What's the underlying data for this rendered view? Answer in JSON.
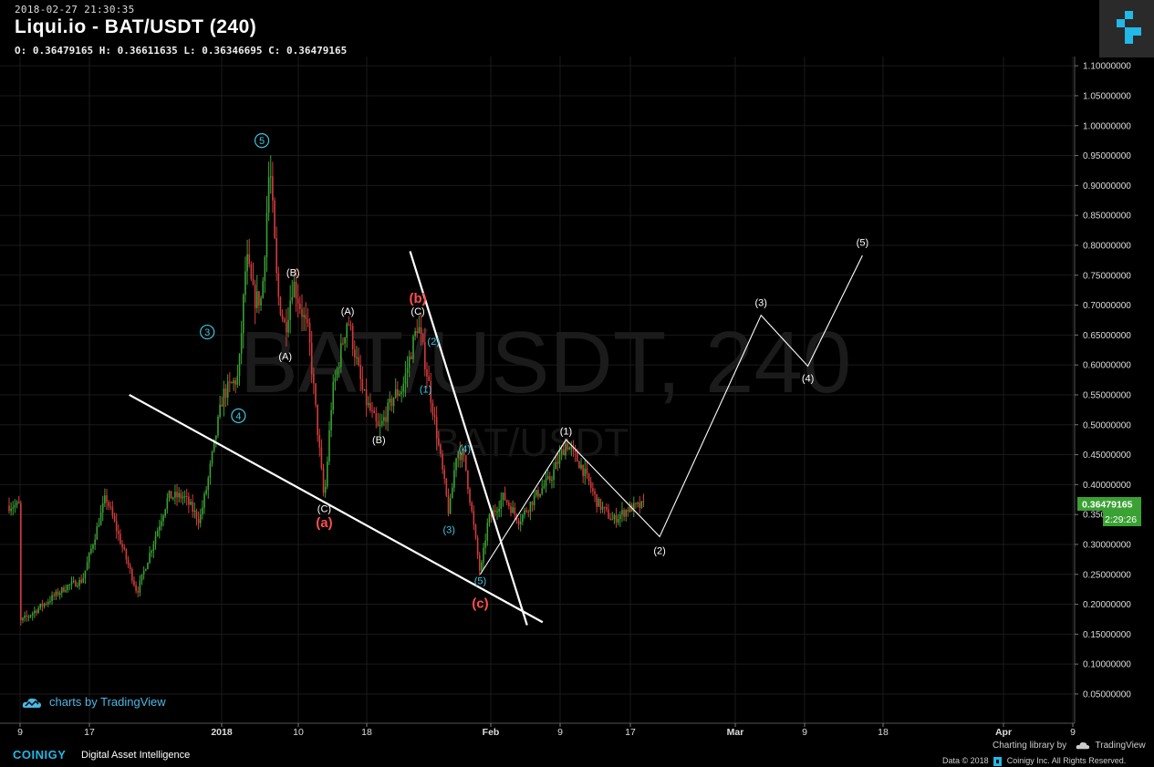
{
  "header": {
    "timestamp": "2018-02-27 21:30:35",
    "title": "Liqui.io - BAT/USDT (240)",
    "ohlc": "O: 0.36479165 H: 0.36611635 L: 0.36346695 C: 0.36479165"
  },
  "watermark": {
    "big": "BAT/USDT, 240",
    "small": "BAT/USDT"
  },
  "price_tag": {
    "price": "0.36479165",
    "countdown": "2:29:26"
  },
  "footer": {
    "tv_badge": "charts by TradingView",
    "brand": "COINIGY",
    "tagline": "Digital Asset Intelligence",
    "charting_library": "Charting library by",
    "tv_name": "TradingView",
    "copyright": "Data © 2018",
    "copyright_tail": "Coinigy Inc. All Rights Reserved."
  },
  "colors": {
    "background": "#000000",
    "up_candle": "#3aa133",
    "down_candle": "#d23b3b",
    "wave_cyan": "#3fc6de",
    "wave_red": "#ff4f4f",
    "price_tag": "#3aa133",
    "grid": "#1a1a1a"
  },
  "chart_data": {
    "type": "candlestick",
    "symbol": "BAT/USDT",
    "interval": "240",
    "ylim": [
      0.0,
      1.1
    ],
    "yticks": [
      "1.10000000",
      "1.05000000",
      "1.00000000",
      "0.95000000",
      "0.90000000",
      "0.85000000",
      "0.80000000",
      "0.75000000",
      "0.70000000",
      "0.65000000",
      "0.60000000",
      "0.55000000",
      "0.50000000",
      "0.45000000",
      "0.40000000",
      "0.35000000",
      "0.30000000",
      "0.25000000",
      "0.20000000",
      "0.15000000",
      "0.10000000",
      "0.05000000"
    ],
    "xticks": [
      "9",
      "17",
      "2018",
      "10",
      "18",
      "Feb",
      "9",
      "17",
      "Mar",
      "9",
      "18",
      "Apr",
      "9"
    ],
    "price_path": [
      [
        "2017-12-09",
        0.17
      ],
      [
        "2017-12-12",
        0.2
      ],
      [
        "2017-12-15",
        0.23
      ],
      [
        "2017-12-17",
        0.24
      ],
      [
        "2017-12-20",
        0.38
      ],
      [
        "2017-12-22",
        0.3
      ],
      [
        "2017-12-24",
        0.22
      ],
      [
        "2017-12-26",
        0.3
      ],
      [
        "2017-12-28",
        0.38
      ],
      [
        "2017-12-30",
        0.38
      ],
      [
        "2018-01-01",
        0.34
      ],
      [
        "2018-01-02",
        0.4
      ],
      [
        "2018-01-04",
        0.55
      ],
      [
        "2018-01-06",
        0.58
      ],
      [
        "2018-01-07",
        0.78
      ],
      [
        "2018-01-08",
        0.71
      ],
      [
        "2018-01-09",
        0.71
      ],
      [
        "2018-01-10",
        0.94
      ],
      [
        "2018-01-11",
        0.72
      ],
      [
        "2018-01-12",
        0.66
      ],
      [
        "2018-01-13",
        0.74
      ],
      [
        "2018-01-15",
        0.65
      ],
      [
        "2018-01-17",
        0.37
      ],
      [
        "2018-01-18",
        0.55
      ],
      [
        "2018-01-20",
        0.68
      ],
      [
        "2018-01-22",
        0.55
      ],
      [
        "2018-01-24",
        0.49
      ],
      [
        "2018-01-26",
        0.55
      ],
      [
        "2018-01-27",
        0.56
      ],
      [
        "2018-01-29",
        0.67
      ],
      [
        "2018-01-30",
        0.6
      ],
      [
        "2018-01-31",
        0.52
      ],
      [
        "2018-02-02",
        0.35
      ],
      [
        "2018-02-03",
        0.46
      ],
      [
        "2018-02-04",
        0.44
      ],
      [
        "2018-02-06",
        0.25
      ],
      [
        "2018-02-07",
        0.34
      ],
      [
        "2018-02-09",
        0.38
      ],
      [
        "2018-02-11",
        0.34
      ],
      [
        "2018-02-13",
        0.38
      ],
      [
        "2018-02-15",
        0.41
      ],
      [
        "2018-02-17",
        0.47
      ],
      [
        "2018-02-19",
        0.43
      ],
      [
        "2018-02-21",
        0.37
      ],
      [
        "2018-02-23",
        0.34
      ],
      [
        "2018-02-25",
        0.36
      ],
      [
        "2018-02-27",
        0.365
      ]
    ],
    "wave_labels": [
      {
        "text": "5",
        "date": "2018-01-09",
        "price": 0.975,
        "style": "cyan-circle"
      },
      {
        "text": "3",
        "date": "2018-01-02",
        "price": 0.655,
        "style": "cyan-circle"
      },
      {
        "text": "4",
        "date": "2018-01-06",
        "price": 0.515,
        "style": "cyan-circle"
      },
      {
        "text": "(B)",
        "date": "2018-01-13",
        "price": 0.755,
        "style": "white"
      },
      {
        "text": "(A)",
        "date": "2018-01-12",
        "price": 0.615,
        "style": "white"
      },
      {
        "text": "(A)",
        "date": "2018-01-20",
        "price": 0.69,
        "style": "white"
      },
      {
        "text": "(B)",
        "date": "2018-01-24",
        "price": 0.475,
        "style": "white"
      },
      {
        "text": "(C)",
        "date": "2018-01-17",
        "price": 0.36,
        "style": "white"
      },
      {
        "text": "(a)",
        "date": "2018-01-17",
        "price": 0.335,
        "style": "red"
      },
      {
        "text": "(b)",
        "date": "2018-01-29",
        "price": 0.71,
        "style": "red"
      },
      {
        "text": "(C)",
        "date": "2018-01-29",
        "price": 0.69,
        "style": "white"
      },
      {
        "text": "(2)",
        "date": "2018-01-31",
        "price": 0.64,
        "style": "cyan"
      },
      {
        "text": "(1)",
        "date": "2018-01-30",
        "price": 0.56,
        "style": "cyan"
      },
      {
        "text": "(4)",
        "date": "2018-02-04",
        "price": 0.46,
        "style": "cyan"
      },
      {
        "text": "(3)",
        "date": "2018-02-02",
        "price": 0.325,
        "style": "cyan"
      },
      {
        "text": "(5)",
        "date": "2018-02-06",
        "price": 0.24,
        "style": "cyan"
      },
      {
        "text": "(c)",
        "date": "2018-02-06",
        "price": 0.2,
        "style": "red"
      },
      {
        "text": "(1)",
        "date": "2018-02-17",
        "price": 0.49,
        "style": "white"
      },
      {
        "text": "(2)",
        "date": "2018-03-01",
        "price": 0.29,
        "style": "white"
      },
      {
        "text": "(3)",
        "date": "2018-03-14",
        "price": 0.705,
        "style": "white"
      },
      {
        "text": "(4)",
        "date": "2018-03-20",
        "price": 0.578,
        "style": "white"
      },
      {
        "text": "(5)",
        "date": "2018-03-27",
        "price": 0.805,
        "style": "white"
      }
    ],
    "trendlines": [
      {
        "name": "support",
        "from": [
          "2017-12-23",
          0.55
        ],
        "to": [
          "2018-02-14",
          0.17
        ]
      },
      {
        "name": "downtrend",
        "from": [
          "2018-01-28",
          0.79
        ],
        "to": [
          "2018-02-12",
          0.165
        ]
      }
    ],
    "projection": [
      [
        "2018-02-06",
        0.25
      ],
      [
        "2018-02-17",
        0.475
      ],
      [
        "2018-03-01",
        0.313
      ],
      [
        "2018-03-14",
        0.683
      ],
      [
        "2018-03-20",
        0.598
      ],
      [
        "2018-03-27",
        0.783
      ]
    ],
    "last_price": 0.36479165
  }
}
